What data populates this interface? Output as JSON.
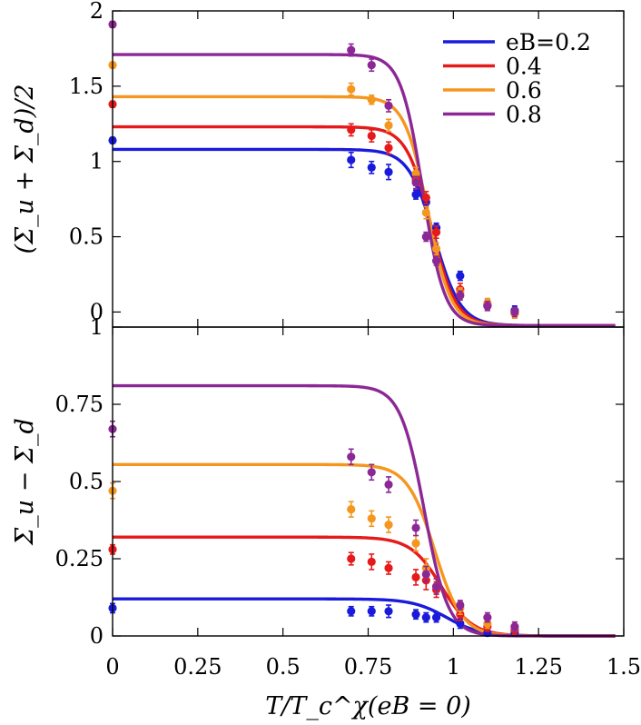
{
  "chart_data": [
    {
      "type": "line",
      "panel": "top",
      "ylabel": "(Σ_u + Σ_d)/2",
      "ylim": [
        -0.1,
        2.0
      ],
      "xlim": [
        0,
        1.5
      ],
      "yticks": [
        0,
        0.5,
        1,
        1.5,
        2
      ],
      "ytick_labels": [
        "0",
        "0.5",
        "1",
        "1.5",
        "2"
      ],
      "legend_position": "top-right",
      "series": [
        {
          "name": "eB=0.2",
          "color": "#1a1adc",
          "curve": {
            "high": 1.08,
            "low": -0.09,
            "tc": 0.945,
            "w": 0.038
          },
          "points": [
            {
              "x": 0,
              "y": 1.14,
              "err": 0.02
            },
            {
              "x": 0.7,
              "y": 1.01,
              "err": 0.05
            },
            {
              "x": 0.76,
              "y": 0.96,
              "err": 0.04
            },
            {
              "x": 0.81,
              "y": 0.93,
              "err": 0.05
            },
            {
              "x": 0.89,
              "y": 0.78,
              "err": 0.03
            },
            {
              "x": 0.92,
              "y": 0.73,
              "err": 0.03
            },
            {
              "x": 0.95,
              "y": 0.56,
              "err": 0.03
            },
            {
              "x": 1.02,
              "y": 0.24,
              "err": 0.03
            },
            {
              "x": 1.1,
              "y": 0.05,
              "err": 0.03
            },
            {
              "x": 1.18,
              "y": 0.01,
              "err": 0.03
            }
          ]
        },
        {
          "name": "0.4",
          "color": "#e61a1a",
          "curve": {
            "high": 1.23,
            "low": -0.09,
            "tc": 0.935,
            "w": 0.036
          },
          "points": [
            {
              "x": 0,
              "y": 1.38,
              "err": 0.02
            },
            {
              "x": 0.7,
              "y": 1.21,
              "err": 0.04
            },
            {
              "x": 0.76,
              "y": 1.17,
              "err": 0.04
            },
            {
              "x": 0.81,
              "y": 1.09,
              "err": 0.04
            },
            {
              "x": 0.89,
              "y": 0.88,
              "err": 0.04
            },
            {
              "x": 0.92,
              "y": 0.76,
              "err": 0.04
            },
            {
              "x": 0.95,
              "y": 0.53,
              "err": 0.04
            },
            {
              "x": 1.02,
              "y": 0.15,
              "err": 0.04
            },
            {
              "x": 1.1,
              "y": 0.04,
              "err": 0.03
            },
            {
              "x": 1.18,
              "y": -0.01,
              "err": 0.03
            }
          ]
        },
        {
          "name": "0.6",
          "color": "#f5961e",
          "curve": {
            "high": 1.43,
            "low": -0.09,
            "tc": 0.925,
            "w": 0.034
          },
          "points": [
            {
              "x": 0,
              "y": 1.64,
              "err": 0.02
            },
            {
              "x": 0.7,
              "y": 1.48,
              "err": 0.04
            },
            {
              "x": 0.76,
              "y": 1.41,
              "err": 0.03
            },
            {
              "x": 0.81,
              "y": 1.24,
              "err": 0.04
            },
            {
              "x": 0.89,
              "y": 0.92,
              "err": 0.04
            },
            {
              "x": 0.92,
              "y": 0.66,
              "err": 0.04
            },
            {
              "x": 0.95,
              "y": 0.42,
              "err": 0.04
            },
            {
              "x": 1.02,
              "y": 0.13,
              "err": 0.03
            },
            {
              "x": 1.1,
              "y": 0.06,
              "err": 0.03
            },
            {
              "x": 1.18,
              "y": -0.01,
              "err": 0.03
            }
          ]
        },
        {
          "name": "0.8",
          "color": "#8c2896",
          "curve": {
            "high": 1.71,
            "low": -0.09,
            "tc": 0.91,
            "w": 0.032
          },
          "points": [
            {
              "x": 0,
              "y": 1.91,
              "err": 0.02
            },
            {
              "x": 0.7,
              "y": 1.74,
              "err": 0.04
            },
            {
              "x": 0.76,
              "y": 1.64,
              "err": 0.04
            },
            {
              "x": 0.81,
              "y": 1.37,
              "err": 0.04
            },
            {
              "x": 0.89,
              "y": 0.86,
              "err": 0.04
            },
            {
              "x": 0.92,
              "y": 0.5,
              "err": 0.03
            },
            {
              "x": 0.95,
              "y": 0.34,
              "err": 0.03
            },
            {
              "x": 1.02,
              "y": 0.11,
              "err": 0.03
            },
            {
              "x": 1.1,
              "y": 0.04,
              "err": 0.03
            },
            {
              "x": 1.18,
              "y": 0.0,
              "err": 0.03
            }
          ]
        }
      ]
    },
    {
      "type": "line",
      "panel": "bottom",
      "xlabel": "T/T_c^χ(eB = 0)",
      "ylabel": "Σ_u − Σ_d",
      "ylim": [
        0,
        1.0
      ],
      "xlim": [
        0,
        1.5
      ],
      "xticks": [
        0,
        0.25,
        0.5,
        0.75,
        1,
        1.25,
        1.5
      ],
      "xtick_labels": [
        "0",
        "0.25",
        "0.5",
        "0.75",
        "1",
        "1.25",
        "1.5"
      ],
      "yticks": [
        0,
        0.25,
        0.5,
        0.75,
        1
      ],
      "ytick_labels": [
        "0",
        "0.25",
        "0.5",
        "0.75",
        "1"
      ],
      "series": [
        {
          "name": "eB=0.2",
          "color": "#1a1adc",
          "curve": {
            "high": 0.12,
            "low": 0.0,
            "tc": 0.98,
            "w": 0.05
          },
          "points": [
            {
              "x": 0,
              "y": 0.09,
              "err": 0.015
            },
            {
              "x": 0.7,
              "y": 0.08,
              "err": 0.015
            },
            {
              "x": 0.76,
              "y": 0.08,
              "err": 0.015
            },
            {
              "x": 0.81,
              "y": 0.08,
              "err": 0.02
            },
            {
              "x": 0.89,
              "y": 0.07,
              "err": 0.015
            },
            {
              "x": 0.92,
              "y": 0.06,
              "err": 0.015
            },
            {
              "x": 0.95,
              "y": 0.06,
              "err": 0.015
            },
            {
              "x": 1.02,
              "y": 0.04,
              "err": 0.015
            },
            {
              "x": 1.1,
              "y": 0.01,
              "err": 0.01
            },
            {
              "x": 1.18,
              "y": 0.01,
              "err": 0.01
            }
          ]
        },
        {
          "name": "0.4",
          "color": "#e61a1a",
          "curve": {
            "high": 0.32,
            "low": 0.0,
            "tc": 0.965,
            "w": 0.045
          },
          "points": [
            {
              "x": 0,
              "y": 0.28,
              "err": 0.015
            },
            {
              "x": 0.7,
              "y": 0.25,
              "err": 0.02
            },
            {
              "x": 0.76,
              "y": 0.24,
              "err": 0.025
            },
            {
              "x": 0.81,
              "y": 0.22,
              "err": 0.02
            },
            {
              "x": 0.89,
              "y": 0.19,
              "err": 0.025
            },
            {
              "x": 0.92,
              "y": 0.18,
              "err": 0.03
            },
            {
              "x": 0.95,
              "y": 0.15,
              "err": 0.025
            },
            {
              "x": 1.02,
              "y": 0.07,
              "err": 0.02
            },
            {
              "x": 1.1,
              "y": 0.03,
              "err": 0.015
            },
            {
              "x": 1.18,
              "y": 0.02,
              "err": 0.015
            }
          ]
        },
        {
          "name": "0.6",
          "color": "#f5961e",
          "curve": {
            "high": 0.555,
            "low": 0.0,
            "tc": 0.945,
            "w": 0.04
          },
          "points": [
            {
              "x": 0,
              "y": 0.47,
              "err": 0.025
            },
            {
              "x": 0.7,
              "y": 0.41,
              "err": 0.025
            },
            {
              "x": 0.76,
              "y": 0.38,
              "err": 0.025
            },
            {
              "x": 0.81,
              "y": 0.36,
              "err": 0.025
            },
            {
              "x": 0.89,
              "y": 0.3,
              "err": 0.025
            },
            {
              "x": 0.92,
              "y": 0.22,
              "err": 0.03
            },
            {
              "x": 0.95,
              "y": 0.16,
              "err": 0.025
            },
            {
              "x": 1.02,
              "y": 0.09,
              "err": 0.02
            },
            {
              "x": 1.1,
              "y": 0.04,
              "err": 0.015
            },
            {
              "x": 1.18,
              "y": 0.03,
              "err": 0.015
            }
          ]
        },
        {
          "name": "0.8",
          "color": "#8c2896",
          "curve": {
            "high": 0.81,
            "low": 0.0,
            "tc": 0.915,
            "w": 0.035
          },
          "points": [
            {
              "x": 0,
              "y": 0.67,
              "err": 0.025
            },
            {
              "x": 0.7,
              "y": 0.58,
              "err": 0.025
            },
            {
              "x": 0.76,
              "y": 0.53,
              "err": 0.025
            },
            {
              "x": 0.81,
              "y": 0.49,
              "err": 0.025
            },
            {
              "x": 0.89,
              "y": 0.35,
              "err": 0.025
            },
            {
              "x": 0.92,
              "y": 0.2,
              "err": 0.025
            },
            {
              "x": 0.95,
              "y": 0.16,
              "err": 0.025
            },
            {
              "x": 1.02,
              "y": 0.1,
              "err": 0.015
            },
            {
              "x": 1.1,
              "y": 0.06,
              "err": 0.015
            },
            {
              "x": 1.18,
              "y": 0.03,
              "err": 0.015
            }
          ]
        }
      ]
    }
  ]
}
